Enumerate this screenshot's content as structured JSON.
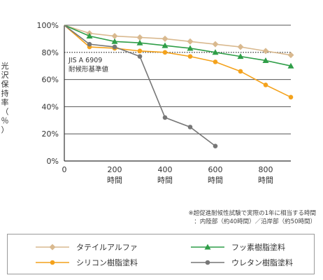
{
  "chart_data": {
    "type": "line",
    "ylabel": "光沢保持率（％）",
    "x": [
      0,
      100,
      200,
      300,
      400,
      500,
      600,
      700,
      800,
      900
    ],
    "xlim": [
      0,
      900
    ],
    "ylim": [
      0,
      100
    ],
    "xticks": [
      {
        "value": 0,
        "label": "0",
        "unit": ""
      },
      {
        "value": 200,
        "label": "200",
        "unit": "時間"
      },
      {
        "value": 400,
        "label": "400",
        "unit": "時間"
      },
      {
        "value": 600,
        "label": "600",
        "unit": "時間"
      },
      {
        "value": 800,
        "label": "800",
        "unit": "時間"
      }
    ],
    "yticks": [
      {
        "value": 0,
        "label": "0%"
      },
      {
        "value": 20,
        "label": "20%"
      },
      {
        "value": 40,
        "label": "40%"
      },
      {
        "value": 60,
        "label": "60%"
      },
      {
        "value": 80,
        "label": "80%"
      },
      {
        "value": 100,
        "label": "100%"
      }
    ],
    "reference_line": {
      "value": 80,
      "label_lines": [
        "JIS A 6909",
        "耐候形基準値"
      ]
    },
    "series": [
      {
        "name": "タテイルアルファ",
        "color": "#d9b98f",
        "marker": "diamond",
        "points": [
          [
            0,
            100
          ],
          [
            100,
            94
          ],
          [
            200,
            92
          ],
          [
            300,
            91
          ],
          [
            400,
            90
          ],
          [
            500,
            88
          ],
          [
            600,
            86
          ],
          [
            700,
            84
          ],
          [
            800,
            81
          ],
          [
            900,
            78
          ]
        ]
      },
      {
        "name": "シリコン樹脂塗料",
        "color": "#f4a21c",
        "marker": "circle",
        "points": [
          [
            0,
            100
          ],
          [
            100,
            84
          ],
          [
            200,
            83
          ],
          [
            300,
            81
          ],
          [
            400,
            80
          ],
          [
            500,
            77
          ],
          [
            600,
            73
          ],
          [
            700,
            66
          ],
          [
            800,
            56
          ],
          [
            900,
            47
          ]
        ]
      },
      {
        "name": "フッ素樹脂塗料",
        "color": "#2f9e48",
        "marker": "triangle",
        "points": [
          [
            0,
            100
          ],
          [
            100,
            92
          ],
          [
            200,
            88
          ],
          [
            300,
            87
          ],
          [
            400,
            85
          ],
          [
            500,
            83
          ],
          [
            600,
            80
          ],
          [
            700,
            77
          ],
          [
            800,
            74
          ],
          [
            900,
            70
          ]
        ]
      },
      {
        "name": "ウレタン樹脂塗料",
        "color": "#777777",
        "marker": "circle",
        "points": [
          [
            0,
            100
          ],
          [
            100,
            86
          ],
          [
            200,
            84
          ],
          [
            300,
            77
          ],
          [
            400,
            32
          ],
          [
            500,
            25
          ],
          [
            600,
            11
          ]
        ]
      }
    ],
    "legend_placement": "bottom",
    "grid": true
  },
  "note": {
    "line1": "※超促進耐候性試験で実際の1年に相当する時間",
    "line2": "：内陸部（約40時間）／沿岸部（約50時間）"
  }
}
